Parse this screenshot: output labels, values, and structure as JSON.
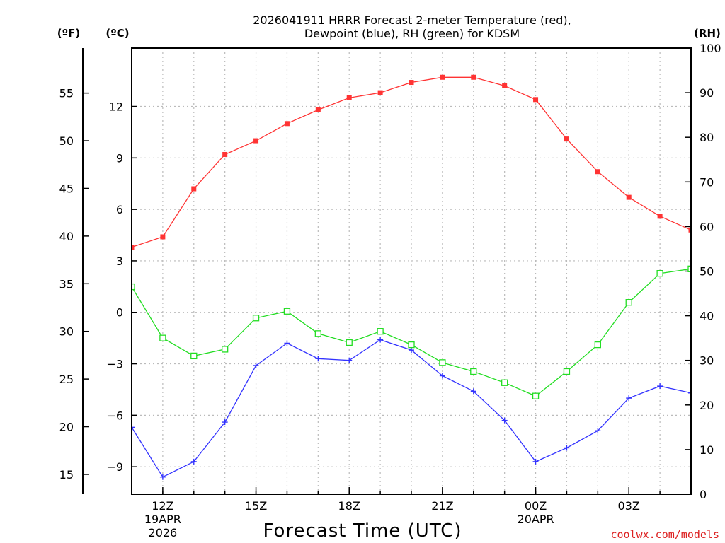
{
  "chart_data": {
    "type": "line",
    "title_line1": "2026041911 HRRR Forecast 2-meter Temperature (red),",
    "title_line2": "Dewpoint (blue), RH (green) for KDSM",
    "xlabel": "Forecast Time (UTC)",
    "units": {
      "fahrenheit": "(ºF)",
      "celsius": "(ºC)",
      "rh": "(RH)"
    },
    "watermark": "coolwx.com/models",
    "x_hours": [
      11,
      12,
      13,
      14,
      15,
      16,
      17,
      18,
      19,
      20,
      21,
      22,
      23,
      24,
      25,
      26,
      27,
      28,
      29
    ],
    "xlim": [
      11,
      29
    ],
    "x_ticks": [
      {
        "hour": 12,
        "lines": [
          "12Z",
          "19APR",
          "2026"
        ]
      },
      {
        "hour": 15,
        "lines": [
          "15Z"
        ]
      },
      {
        "hour": 18,
        "lines": [
          "18Z"
        ]
      },
      {
        "hour": 21,
        "lines": [
          "21Z"
        ]
      },
      {
        "hour": 24,
        "lines": [
          "00Z",
          "20APR"
        ]
      },
      {
        "hour": 27,
        "lines": [
          "03Z"
        ]
      }
    ],
    "celsius_axis": {
      "lim": [
        -10.6,
        15.4
      ],
      "ticks": [
        -9,
        -6,
        -3,
        0,
        3,
        6,
        9,
        12
      ]
    },
    "fahrenheit_axis": {
      "ticks": [
        15,
        20,
        25,
        30,
        35,
        40,
        45,
        50,
        55
      ]
    },
    "rh_axis": {
      "lim": [
        0,
        100
      ],
      "ticks": [
        0,
        10,
        20,
        30,
        40,
        50,
        60,
        70,
        80,
        90,
        100
      ]
    },
    "series": [
      {
        "name": "2-meter Temperature",
        "unit": "C",
        "color": "#ff3333",
        "marker": "filled-square",
        "values": [
          3.8,
          4.4,
          7.2,
          9.2,
          10.0,
          11.0,
          11.8,
          12.5,
          12.8,
          13.4,
          13.7,
          13.7,
          13.2,
          12.4,
          10.1,
          8.2,
          6.7,
          5.6,
          4.8
        ]
      },
      {
        "name": "Dewpoint",
        "unit": "C",
        "color": "#3333ff",
        "marker": "plus",
        "values": [
          -6.7,
          -9.6,
          -8.7,
          -6.4,
          -3.1,
          -1.8,
          -2.7,
          -2.8,
          -1.6,
          -2.2,
          -3.7,
          -4.6,
          -6.3,
          -8.7,
          -7.9,
          -6.9,
          -5.0,
          -4.3,
          -4.7
        ]
      },
      {
        "name": "RH",
        "unit": "%",
        "color": "#22dd22",
        "marker": "open-square",
        "values": [
          46.5,
          35.0,
          31.0,
          32.5,
          39.5,
          41.0,
          36.0,
          34.0,
          36.5,
          33.5,
          29.5,
          27.5,
          25.0,
          22.0,
          27.5,
          33.5,
          43.0,
          49.5,
          50.5
        ]
      }
    ]
  }
}
